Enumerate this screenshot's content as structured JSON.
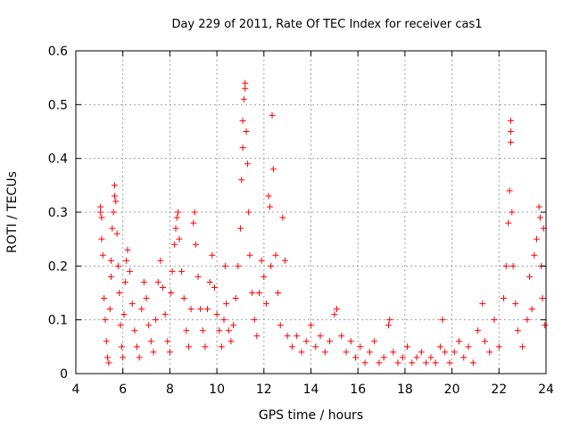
{
  "chart_data": {
    "type": "scatter",
    "title": "Day 229 of 2011, Rate Of TEC Index for receiver cas1",
    "xlabel": "GPS time / hours",
    "ylabel": "ROTI / TECUs",
    "xlim": [
      4,
      24
    ],
    "ylim": [
      0,
      0.6
    ],
    "xticks": [
      "4",
      "6",
      "8",
      "10",
      "12",
      "14",
      "16",
      "18",
      "20",
      "22",
      "24"
    ],
    "yticks": [
      "0",
      "0.1",
      "0.2",
      "0.3",
      "0.4",
      "0.5",
      "0.6"
    ],
    "grid": true,
    "marker": "+",
    "color": "#ff0000",
    "series": [
      {
        "name": "cas1",
        "points": [
          [
            5.05,
            0.31
          ],
          [
            5.05,
            0.3
          ],
          [
            5.1,
            0.29
          ],
          [
            5.1,
            0.25
          ],
          [
            5.15,
            0.22
          ],
          [
            5.2,
            0.14
          ],
          [
            5.25,
            0.1
          ],
          [
            5.3,
            0.06
          ],
          [
            5.35,
            0.03
          ],
          [
            5.4,
            0.02
          ],
          [
            5.45,
            0.12
          ],
          [
            5.5,
            0.18
          ],
          [
            5.5,
            0.21
          ],
          [
            5.55,
            0.27
          ],
          [
            5.6,
            0.3
          ],
          [
            5.65,
            0.33
          ],
          [
            5.65,
            0.35
          ],
          [
            5.7,
            0.32
          ],
          [
            5.75,
            0.26
          ],
          [
            5.8,
            0.2
          ],
          [
            5.85,
            0.15
          ],
          [
            5.9,
            0.09
          ],
          [
            5.95,
            0.05
          ],
          [
            6.0,
            0.03
          ],
          [
            6.05,
            0.11
          ],
          [
            6.1,
            0.17
          ],
          [
            6.15,
            0.21
          ],
          [
            6.2,
            0.23
          ],
          [
            6.3,
            0.19
          ],
          [
            6.4,
            0.13
          ],
          [
            6.5,
            0.08
          ],
          [
            6.6,
            0.05
          ],
          [
            6.7,
            0.03
          ],
          [
            6.8,
            0.12
          ],
          [
            6.9,
            0.17
          ],
          [
            7.0,
            0.14
          ],
          [
            7.1,
            0.09
          ],
          [
            7.2,
            0.06
          ],
          [
            7.3,
            0.04
          ],
          [
            7.4,
            0.1
          ],
          [
            7.5,
            0.17
          ],
          [
            7.6,
            0.21
          ],
          [
            7.7,
            0.16
          ],
          [
            7.8,
            0.11
          ],
          [
            7.9,
            0.06
          ],
          [
            8.0,
            0.04
          ],
          [
            8.05,
            0.15
          ],
          [
            8.1,
            0.19
          ],
          [
            8.2,
            0.24
          ],
          [
            8.25,
            0.27
          ],
          [
            8.3,
            0.29
          ],
          [
            8.35,
            0.3
          ],
          [
            8.4,
            0.25
          ],
          [
            8.5,
            0.19
          ],
          [
            8.6,
            0.14
          ],
          [
            8.7,
            0.08
          ],
          [
            8.8,
            0.05
          ],
          [
            8.9,
            0.12
          ],
          [
            9.0,
            0.28
          ],
          [
            9.05,
            0.3
          ],
          [
            9.1,
            0.24
          ],
          [
            9.2,
            0.18
          ],
          [
            9.3,
            0.12
          ],
          [
            9.4,
            0.08
          ],
          [
            9.5,
            0.05
          ],
          [
            9.6,
            0.12
          ],
          [
            9.7,
            0.17
          ],
          [
            9.8,
            0.22
          ],
          [
            9.9,
            0.16
          ],
          [
            10.0,
            0.11
          ],
          [
            10.1,
            0.08
          ],
          [
            10.2,
            0.05
          ],
          [
            10.3,
            0.1
          ],
          [
            10.35,
            0.2
          ],
          [
            10.4,
            0.13
          ],
          [
            10.5,
            0.08
          ],
          [
            10.6,
            0.06
          ],
          [
            10.7,
            0.09
          ],
          [
            10.8,
            0.14
          ],
          [
            10.9,
            0.2
          ],
          [
            11.0,
            0.27
          ],
          [
            11.05,
            0.36
          ],
          [
            11.1,
            0.42
          ],
          [
            11.1,
            0.47
          ],
          [
            11.15,
            0.51
          ],
          [
            11.2,
            0.54
          ],
          [
            11.2,
            0.53
          ],
          [
            11.25,
            0.45
          ],
          [
            11.3,
            0.39
          ],
          [
            11.35,
            0.3
          ],
          [
            11.4,
            0.22
          ],
          [
            11.5,
            0.15
          ],
          [
            11.6,
            0.1
          ],
          [
            11.7,
            0.07
          ],
          [
            11.8,
            0.15
          ],
          [
            11.9,
            0.21
          ],
          [
            12.0,
            0.18
          ],
          [
            12.1,
            0.13
          ],
          [
            12.2,
            0.33
          ],
          [
            12.25,
            0.31
          ],
          [
            12.3,
            0.2
          ],
          [
            12.35,
            0.48
          ],
          [
            12.4,
            0.38
          ],
          [
            12.5,
            0.22
          ],
          [
            12.6,
            0.15
          ],
          [
            12.7,
            0.09
          ],
          [
            12.8,
            0.29
          ],
          [
            12.9,
            0.21
          ],
          [
            13.0,
            0.07
          ],
          [
            13.2,
            0.05
          ],
          [
            13.4,
            0.07
          ],
          [
            13.6,
            0.04
          ],
          [
            13.8,
            0.06
          ],
          [
            14.0,
            0.09
          ],
          [
            14.2,
            0.05
          ],
          [
            14.4,
            0.07
          ],
          [
            14.6,
            0.04
          ],
          [
            14.8,
            0.06
          ],
          [
            15.0,
            0.11
          ],
          [
            15.1,
            0.12
          ],
          [
            15.3,
            0.07
          ],
          [
            15.5,
            0.04
          ],
          [
            15.7,
            0.06
          ],
          [
            15.9,
            0.03
          ],
          [
            16.1,
            0.05
          ],
          [
            16.3,
            0.02
          ],
          [
            16.5,
            0.04
          ],
          [
            16.7,
            0.06
          ],
          [
            16.9,
            0.02
          ],
          [
            17.1,
            0.03
          ],
          [
            17.3,
            0.09
          ],
          [
            17.35,
            0.1
          ],
          [
            17.5,
            0.04
          ],
          [
            17.7,
            0.02
          ],
          [
            17.9,
            0.03
          ],
          [
            18.1,
            0.05
          ],
          [
            18.3,
            0.02
          ],
          [
            18.5,
            0.03
          ],
          [
            18.7,
            0.04
          ],
          [
            18.9,
            0.02
          ],
          [
            19.1,
            0.03
          ],
          [
            19.3,
            0.02
          ],
          [
            19.5,
            0.05
          ],
          [
            19.6,
            0.1
          ],
          [
            19.7,
            0.04
          ],
          [
            19.9,
            0.02
          ],
          [
            20.1,
            0.04
          ],
          [
            20.3,
            0.06
          ],
          [
            20.5,
            0.03
          ],
          [
            20.7,
            0.05
          ],
          [
            20.9,
            0.02
          ],
          [
            21.1,
            0.08
          ],
          [
            21.3,
            0.13
          ],
          [
            21.4,
            0.06
          ],
          [
            21.6,
            0.04
          ],
          [
            21.8,
            0.1
          ],
          [
            22.0,
            0.05
          ],
          [
            22.2,
            0.14
          ],
          [
            22.3,
            0.2
          ],
          [
            22.4,
            0.28
          ],
          [
            22.45,
            0.34
          ],
          [
            22.5,
            0.47
          ],
          [
            22.5,
            0.45
          ],
          [
            22.5,
            0.43
          ],
          [
            22.55,
            0.3
          ],
          [
            22.6,
            0.2
          ],
          [
            22.7,
            0.13
          ],
          [
            22.8,
            0.08
          ],
          [
            23.0,
            0.05
          ],
          [
            23.2,
            0.1
          ],
          [
            23.3,
            0.18
          ],
          [
            23.4,
            0.12
          ],
          [
            23.5,
            0.22
          ],
          [
            23.6,
            0.25
          ],
          [
            23.7,
            0.31
          ],
          [
            23.75,
            0.29
          ],
          [
            23.8,
            0.2
          ],
          [
            23.85,
            0.14
          ],
          [
            23.9,
            0.27
          ],
          [
            23.95,
            0.09
          ]
        ]
      }
    ]
  }
}
